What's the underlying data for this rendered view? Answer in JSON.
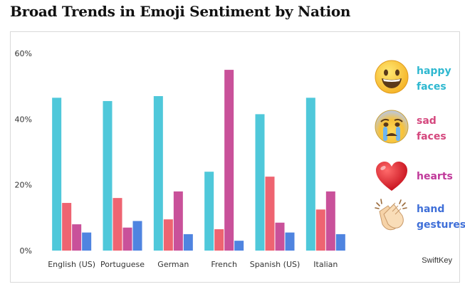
{
  "title": "Broad Trends in Emoji Sentiment by Nation",
  "source": "SwiftKey",
  "chart_data": {
    "type": "bar",
    "title": "Broad Trends in Emoji Sentiment by Nation",
    "xlabel": "",
    "ylabel": "",
    "ylim": [
      0,
      60
    ],
    "yticks": [
      "0%",
      "20%",
      "40%",
      "60%"
    ],
    "ytick_values": [
      0,
      20,
      40,
      60
    ],
    "grid": false,
    "legend": "right",
    "categories": [
      "English (US)",
      "Portuguese",
      "German",
      "French",
      "Spanish (US)",
      "Italian"
    ],
    "series": [
      {
        "name": "happy faces",
        "color": "#4FC8DA",
        "values": [
          46.5,
          45.5,
          47,
          24,
          41.5,
          46.5
        ]
      },
      {
        "name": "sad faces",
        "color": "#EE6471",
        "values": [
          14.5,
          16,
          9.5,
          6.5,
          22.5,
          12.5
        ]
      },
      {
        "name": "hearts",
        "color": "#C9519A",
        "values": [
          8,
          7,
          18,
          55,
          8.5,
          18
        ]
      },
      {
        "name": "hand gestures",
        "color": "#4F84E0",
        "values": [
          5.5,
          9,
          5,
          3,
          5.5,
          5
        ]
      }
    ]
  },
  "legend": [
    {
      "label": "happy\nfaces",
      "color": "#2FB8D0",
      "icon": "grinning-face-icon"
    },
    {
      "label": "sad\nfaces",
      "color": "#D5487E",
      "icon": "crying-face-icon"
    },
    {
      "label": "hearts",
      "color": "#C0399A",
      "icon": "heart-icon"
    },
    {
      "label": "hand\ngestures",
      "color": "#3F6FD8",
      "icon": "clapping-hands-icon"
    }
  ]
}
